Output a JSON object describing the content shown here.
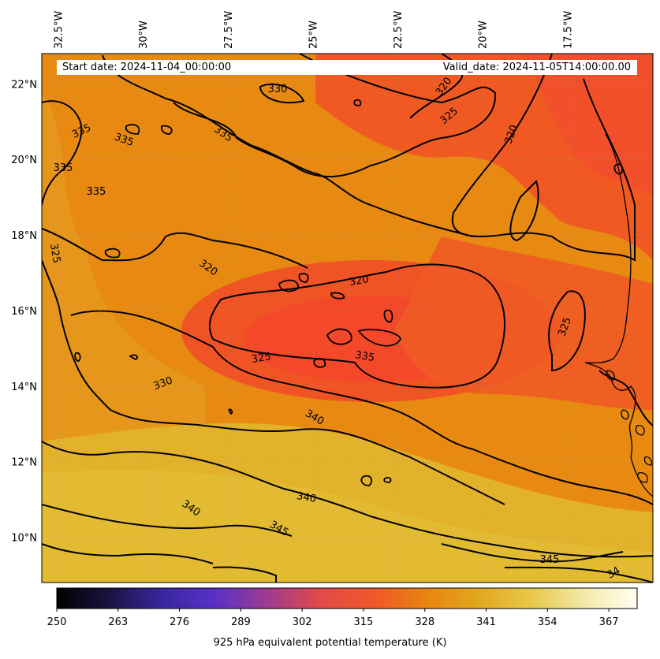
{
  "header": {
    "start_date": "Start date: 2024-11-04_00:00:00",
    "valid_date": "Valid_date: 2024-11-05T14:00:00.00"
  },
  "map": {
    "lon_range": [
      -33.0,
      -15.0
    ],
    "lat_range": [
      8.8,
      22.8
    ],
    "gridlines": true,
    "lon_ticks": [
      "32.5°W",
      "30°W",
      "27.5°W",
      "25°W",
      "22.5°W",
      "20°W",
      "17.5°W"
    ],
    "lat_ticks": [
      "22°N",
      "20°N",
      "18°N",
      "16°N",
      "14°N",
      "12°N",
      "10°N"
    ],
    "contour_labels": [
      "330",
      "320",
      "325",
      "320",
      "335",
      "335",
      "335",
      "335",
      "335",
      "325",
      "320",
      "320",
      "325",
      "325",
      "335",
      "330",
      "340",
      "340",
      "340",
      "345",
      "345",
      "34"
    ],
    "field_colors": {
      "low": "#f04a2a",
      "mid": "#e88710",
      "high": "#e0b62a",
      "contour": "#000000"
    }
  },
  "colorbar": {
    "ticks": [
      "250",
      "263",
      "276",
      "289",
      "302",
      "315",
      "328",
      "341",
      "354",
      "367"
    ],
    "range": [
      250,
      373
    ],
    "label": "925 hPa equivalent potential temperature (K)",
    "stops": [
      "#000000",
      "#1a1442",
      "#3a26a0",
      "#5a30c8",
      "#a03a90",
      "#e24a48",
      "#f0562a",
      "#e88410",
      "#e2a81e",
      "#e8c84a",
      "#f2eaa8",
      "#fffff0"
    ]
  }
}
